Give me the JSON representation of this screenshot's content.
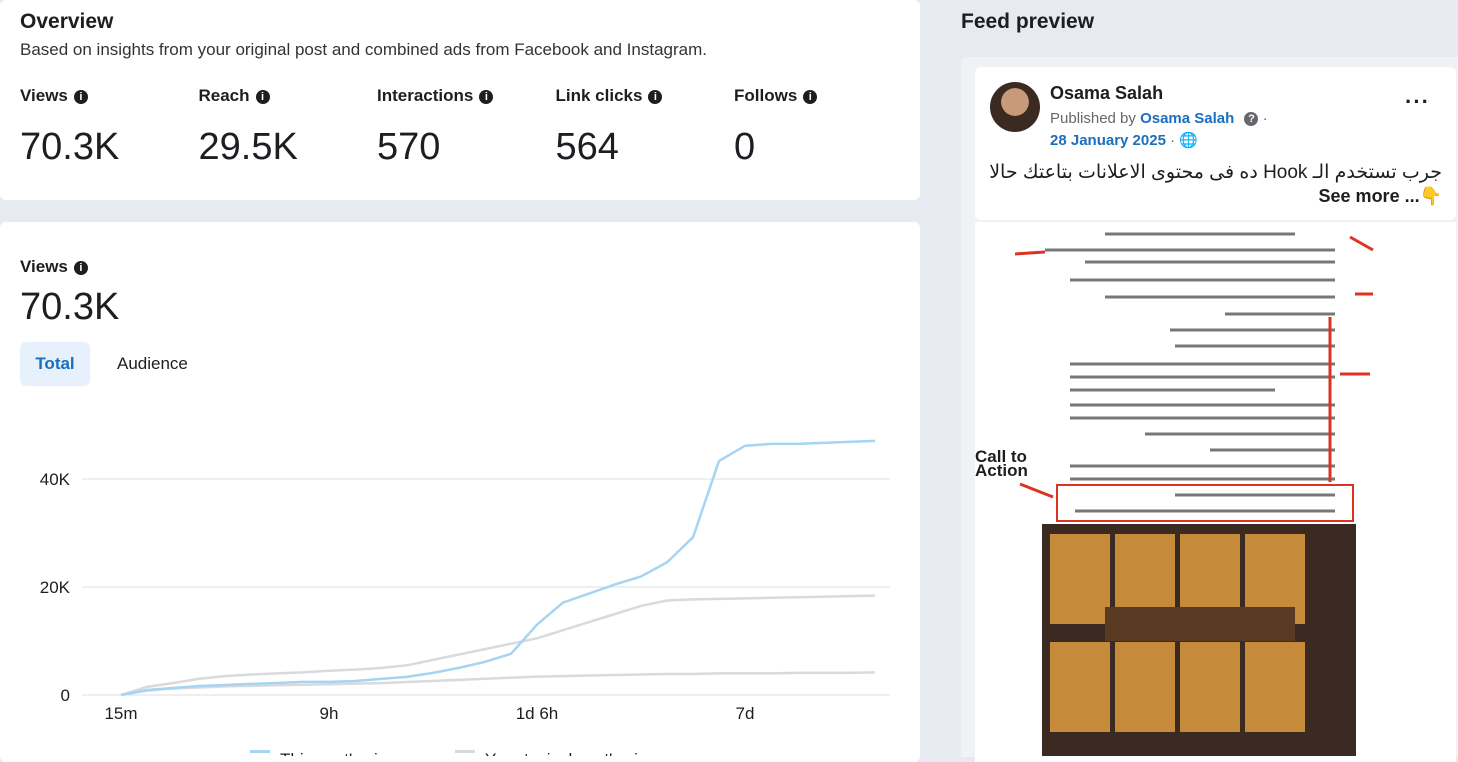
{
  "overview": {
    "title": "Overview",
    "subtitle": "Based on insights from your original post and combined ads from Facebook and Instagram.",
    "metrics": [
      {
        "label": "Views",
        "value": "70.3K"
      },
      {
        "label": "Reach",
        "value": "29.5K"
      },
      {
        "label": "Interactions",
        "value": "570"
      },
      {
        "label": "Link clicks",
        "value": "564"
      },
      {
        "label": "Follows",
        "value": "0"
      }
    ]
  },
  "views_card": {
    "label": "Views",
    "value": "70.3K",
    "tabs": [
      "Total",
      "Audience"
    ]
  },
  "chart_data": {
    "type": "line",
    "categories": [
      "15m",
      null,
      null,
      null,
      null,
      null,
      null,
      null,
      "9h",
      null,
      null,
      null,
      null,
      null,
      null,
      null,
      "1d 6h",
      null,
      null,
      null,
      null,
      null,
      null,
      null,
      "7d",
      null,
      null,
      null,
      null,
      null
    ],
    "ylim": [
      0,
      50000
    ],
    "yticks": [
      0,
      {
        "value": 20000,
        "label": "20K"
      },
      {
        "value": 40000,
        "label": "40K"
      }
    ],
    "grid": true,
    "series": [
      {
        "name": "This post's views",
        "color": "#a6d4f2",
        "values": [
          0,
          930,
          1300,
          1670,
          1860,
          2050,
          2230,
          2420,
          2420,
          2600,
          2980,
          3350,
          4090,
          5020,
          6140,
          7630,
          13020,
          17120,
          18790,
          20470,
          21950,
          24560,
          29210,
          43350,
          46140,
          46510,
          46510,
          46700,
          46880,
          47070
        ]
      },
      {
        "name": "Your typical post's views",
        "color": "#d9dadd",
        "values": [
          0,
          1500,
          2200,
          3000,
          3500,
          3800,
          4000,
          4200,
          4500,
          4700,
          5000,
          5500,
          6500,
          7500,
          8500,
          9500,
          10500,
          12000,
          13500,
          15000,
          16500,
          17500,
          17700,
          17800,
          17900,
          18000,
          18100,
          18200,
          18300,
          18400
        ]
      },
      {
        "color": "#d9dadd",
        "values": [
          0,
          800,
          1200,
          1400,
          1600,
          1700,
          1800,
          1900,
          2000,
          2100,
          2200,
          2400,
          2600,
          2800,
          3000,
          3200,
          3400,
          3500,
          3600,
          3700,
          3800,
          3900,
          3900,
          4000,
          4000,
          4000,
          4100,
          4100,
          4100,
          4200
        ]
      }
    ]
  },
  "feed": {
    "title": "Feed preview",
    "author": "Osama Salah",
    "published_by": "Published by",
    "publisher": "Osama Salah",
    "date": "28 January 2025",
    "text": "جرب تستخدم الـ Hook ده فى محتوى الاعلانات بتاعتك حالا",
    "see_more": "See more ...👇"
  }
}
